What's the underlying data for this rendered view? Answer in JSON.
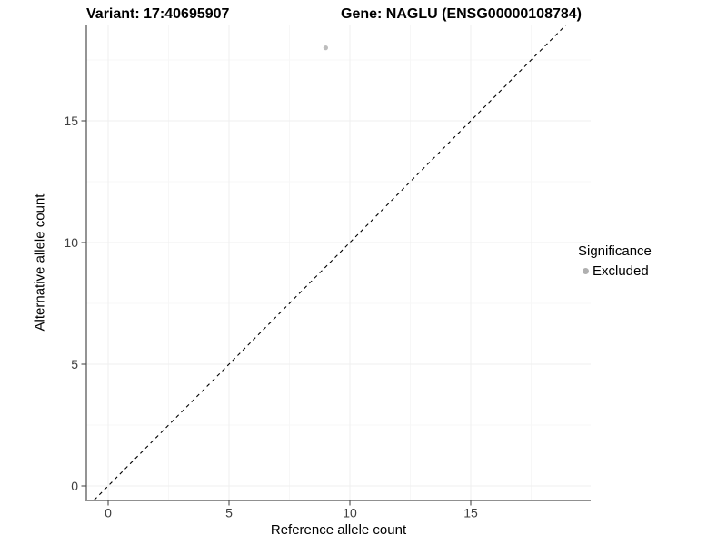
{
  "header": {
    "variant_title": "Variant: 17:40695907",
    "gene_title": "Gene: NAGLU (ENSG00000108784)"
  },
  "chart_data": {
    "type": "scatter",
    "title": "",
    "xlabel": "Reference allele count",
    "ylabel": "Alternative allele count",
    "x_ticks": [
      0,
      5,
      10,
      15
    ],
    "y_ticks": [
      0,
      5,
      10,
      15
    ],
    "x_minor_ticks": [
      2.5,
      7.5,
      12.5,
      17.5
    ],
    "y_minor_ticks": [
      2.5,
      7.5,
      12.5,
      17.5
    ],
    "xlim": [
      -0.9,
      19.96
    ],
    "ylim": [
      -0.6,
      18.96
    ],
    "grid": "major-and-minor",
    "legend_position": "right",
    "series": [
      {
        "name": "Excluded",
        "marker": "circle",
        "color": "#b9b9b9",
        "points": [
          {
            "x": 9,
            "y": 18
          }
        ]
      }
    ],
    "reference_line": {
      "kind": "identity y=x",
      "style": "dashed",
      "color": "#000000"
    },
    "legend": {
      "title": "Significance",
      "items": [
        {
          "label": "Excluded",
          "marker": "circle",
          "color": "#b0b0b0"
        }
      ]
    }
  },
  "style": {
    "background": "#ffffff",
    "axis_color": "#4d4d4d",
    "tick_label_color": "#404040",
    "major_grid_color": "#efefef",
    "minor_grid_color": "#f7f7f7",
    "point_color": "#bdbdbd",
    "ref_line_color": "#000000"
  }
}
